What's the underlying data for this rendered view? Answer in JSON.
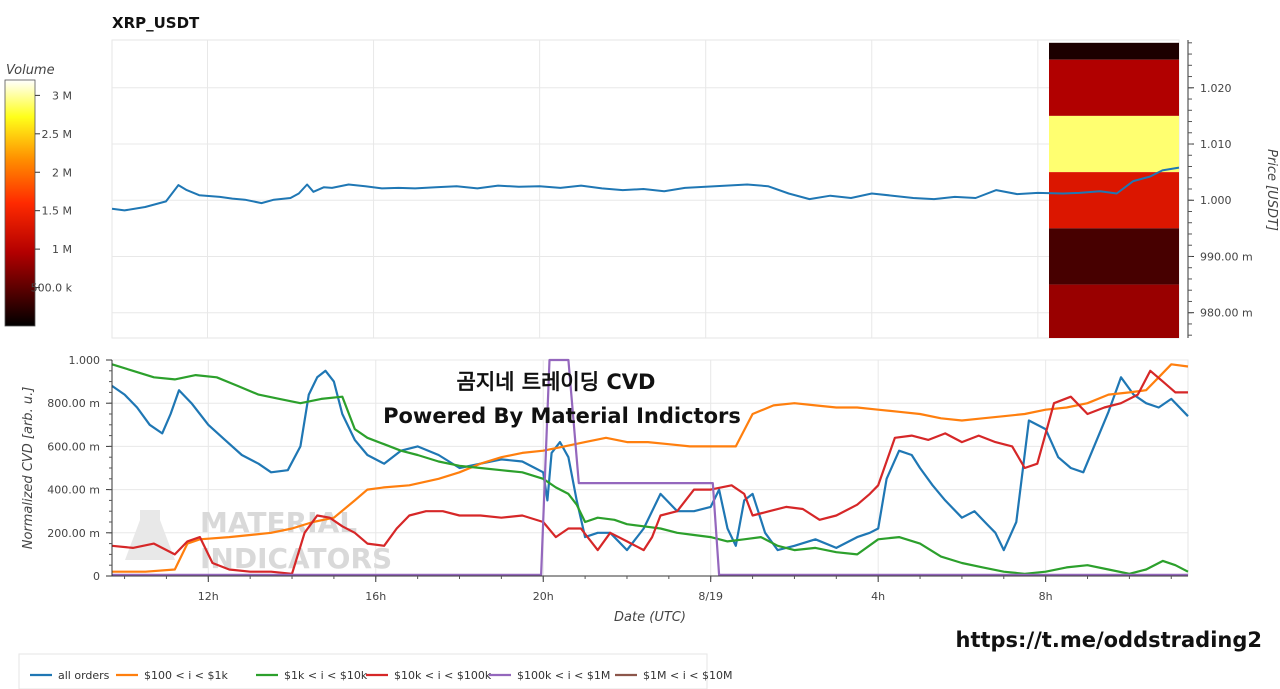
{
  "chart_data": [
    {
      "type": "line+heatmap",
      "title": "XRP_USDT",
      "ylabel": "Price [USDT]",
      "ylim": [
        0.9755,
        1.0285
      ],
      "yticks": [
        0.98,
        0.99,
        1.0,
        1.01,
        1.02
      ],
      "ytick_labels": [
        "980.00 m",
        "990.00 m",
        "1.000",
        "1.010",
        "1.020"
      ],
      "colorbar": {
        "title": "Volume",
        "range": [
          0,
          3200000
        ],
        "ticks": [
          500000,
          1000000,
          1500000,
          2000000,
          2500000,
          3000000
        ],
        "tick_labels": [
          "500.0 k",
          "1 M",
          "1.5 M",
          "2 M",
          "2.5 M",
          "3 M"
        ]
      },
      "heatmap_bins": [
        {
          "price_low": 1.025,
          "price_high": 1.028,
          "volume": 150000
        },
        {
          "price_low": 1.015,
          "price_high": 1.025,
          "volume": 950000
        },
        {
          "price_low": 1.005,
          "price_high": 1.015,
          "volume": 2900000
        },
        {
          "price_low": 0.995,
          "price_high": 1.005,
          "volume": 1300000
        },
        {
          "price_low": 0.985,
          "price_high": 0.995,
          "volume": 380000
        },
        {
          "price_low": 0.9755,
          "price_high": 0.985,
          "volume": 820000
        }
      ],
      "series": [
        {
          "color": "#1f77b4",
          "x": [
            9.7,
            10.0,
            10.5,
            11.0,
            11.3,
            11.5,
            11.8,
            12.3,
            12.6,
            12.9,
            13.3,
            13.6,
            14.0,
            14.2,
            14.4,
            14.55,
            14.8,
            15.0,
            15.4,
            15.8,
            16.2,
            16.6,
            17.0,
            17.5,
            18.0,
            18.5,
            19.0,
            19.5,
            20.0,
            20.5,
            21.0,
            21.5,
            22.0,
            22.5,
            23.0,
            23.5,
            24.0,
            24.5,
            25.0,
            25.5,
            26.0,
            26.5,
            27.0,
            27.5,
            28.0,
            28.5,
            29.0,
            29.5,
            30.0,
            30.5,
            31.0,
            31.5,
            32.0,
            32.6,
            33.0,
            33.5,
            33.9,
            34.3,
            34.7,
            35.0,
            35.4
          ],
          "y": [
            0.9985,
            0.9982,
            0.9988,
            0.9998,
            1.0027,
            1.0018,
            1.0009,
            1.0006,
            1.0003,
            1.0001,
            0.9995,
            1.0001,
            1.0004,
            1.0012,
            1.0028,
            1.0015,
            1.0023,
            1.0022,
            1.0028,
            1.0025,
            1.0021,
            1.0022,
            1.0021,
            1.0023,
            1.0025,
            1.0021,
            1.0026,
            1.0024,
            1.0025,
            1.0022,
            1.0026,
            1.0021,
            1.0018,
            1.002,
            1.0016,
            1.0022,
            1.0024,
            1.0026,
            1.0028,
            1.0025,
            1.0012,
            1.0002,
            1.0008,
            1.0004,
            1.0012,
            1.0008,
            1.0004,
            1.0002,
            1.0006,
            1.0004,
            1.0018,
            1.0011,
            1.0013,
            1.0012,
            1.0013,
            1.0016,
            1.0012,
            1.0034,
            1.0042,
            1.0053,
            1.0058
          ]
        }
      ]
    },
    {
      "type": "line",
      "title": "곰지네 트레이딩 CVD\nPowered By Material Indictors",
      "xlabel": "Date (UTC)",
      "ylabel": "Normalized CVD [arb. u.]",
      "xlim": [
        9.7,
        35.4
      ],
      "xticks": [
        12,
        16,
        20,
        24,
        28,
        32
      ],
      "xtick_labels": [
        "12h",
        "16h",
        "20h",
        "8/19",
        "4h",
        "8h"
      ],
      "ylim": [
        0,
        1
      ],
      "yticks": [
        0,
        0.2,
        0.4,
        0.6,
        0.8,
        1.0
      ],
      "ytick_labels": [
        "0",
        "200.00 m",
        "400.00 m",
        "600.00 m",
        "800.00 m",
        "1.000"
      ],
      "series": [
        {
          "name": "all orders",
          "color": "#1f77b4",
          "x": [
            9.7,
            10.0,
            10.3,
            10.6,
            10.9,
            11.1,
            11.3,
            11.6,
            12.0,
            12.4,
            12.8,
            13.2,
            13.5,
            13.9,
            14.2,
            14.4,
            14.6,
            14.8,
            15.0,
            15.2,
            15.5,
            15.8,
            16.2,
            16.6,
            17.0,
            17.5,
            18.0,
            18.5,
            19.0,
            19.5,
            19.8,
            20.0,
            20.1,
            20.2,
            20.4,
            20.6,
            20.8,
            21.0,
            21.3,
            21.6,
            22.0,
            22.4,
            22.8,
            23.2,
            23.6,
            24.0,
            24.2,
            24.4,
            24.6,
            24.8,
            25.0,
            25.3,
            25.6,
            26.0,
            26.5,
            27.0,
            27.5,
            27.8,
            28.0,
            28.2,
            28.5,
            28.8,
            29.0,
            29.3,
            29.6,
            30.0,
            30.3,
            30.6,
            30.8,
            31.0,
            31.3,
            31.6,
            32.0,
            32.3,
            32.6,
            32.9,
            33.2,
            33.5,
            33.8,
            34.1,
            34.4,
            34.7,
            35.0,
            35.4
          ],
          "y": [
            0.88,
            0.84,
            0.78,
            0.7,
            0.66,
            0.75,
            0.86,
            0.8,
            0.7,
            0.63,
            0.56,
            0.52,
            0.48,
            0.49,
            0.6,
            0.84,
            0.92,
            0.95,
            0.9,
            0.75,
            0.63,
            0.56,
            0.52,
            0.58,
            0.6,
            0.56,
            0.5,
            0.52,
            0.54,
            0.53,
            0.5,
            0.48,
            0.35,
            0.57,
            0.62,
            0.55,
            0.35,
            0.18,
            0.2,
            0.2,
            0.12,
            0.22,
            0.38,
            0.3,
            0.3,
            0.32,
            0.4,
            0.22,
            0.14,
            0.35,
            0.38,
            0.2,
            0.12,
            0.14,
            0.17,
            0.13,
            0.18,
            0.2,
            0.22,
            0.45,
            0.58,
            0.56,
            0.5,
            0.42,
            0.35,
            0.27,
            0.3,
            0.24,
            0.2,
            0.12,
            0.25,
            0.72,
            0.68,
            0.55,
            0.5,
            0.48,
            0.62,
            0.76,
            0.92,
            0.84,
            0.8,
            0.78,
            0.82,
            0.74
          ]
        },
        {
          "name": "$100 < i < $1k",
          "color": "#ff7f0e",
          "x": [
            9.7,
            10.5,
            11.2,
            11.5,
            11.8,
            12.5,
            13.0,
            13.5,
            14.0,
            14.5,
            15.0,
            15.5,
            15.8,
            16.2,
            16.8,
            17.5,
            18.0,
            18.5,
            19.0,
            19.5,
            20.0,
            20.5,
            21.0,
            21.5,
            22.0,
            22.5,
            23.0,
            23.5,
            24.0,
            24.4,
            24.6,
            25.0,
            25.5,
            26.0,
            26.5,
            27.0,
            27.5,
            28.0,
            28.5,
            29.0,
            29.5,
            30.0,
            30.5,
            31.0,
            31.5,
            32.0,
            32.5,
            33.0,
            33.5,
            34.0,
            34.4,
            34.7,
            35.0,
            35.4
          ],
          "y": [
            0.02,
            0.02,
            0.03,
            0.15,
            0.17,
            0.18,
            0.19,
            0.2,
            0.22,
            0.25,
            0.27,
            0.35,
            0.4,
            0.41,
            0.42,
            0.45,
            0.48,
            0.52,
            0.55,
            0.57,
            0.58,
            0.6,
            0.62,
            0.64,
            0.62,
            0.62,
            0.61,
            0.6,
            0.6,
            0.6,
            0.6,
            0.75,
            0.79,
            0.8,
            0.79,
            0.78,
            0.78,
            0.77,
            0.76,
            0.75,
            0.73,
            0.72,
            0.73,
            0.74,
            0.75,
            0.77,
            0.78,
            0.8,
            0.84,
            0.85,
            0.86,
            0.92,
            0.98,
            0.97
          ]
        },
        {
          "name": "$1k < i < $10k",
          "color": "#2ca02c",
          "x": [
            9.7,
            10.2,
            10.7,
            11.2,
            11.7,
            12.2,
            12.7,
            13.2,
            13.7,
            14.2,
            14.7,
            15.2,
            15.5,
            15.8,
            16.2,
            16.6,
            17.0,
            17.5,
            18.0,
            18.5,
            19.0,
            19.5,
            20.0,
            20.3,
            20.6,
            20.8,
            21.0,
            21.3,
            21.7,
            22.0,
            22.4,
            22.8,
            23.2,
            23.6,
            24.0,
            24.4,
            24.8,
            25.2,
            25.6,
            26.0,
            26.5,
            27.0,
            27.5,
            28.0,
            28.5,
            29.0,
            29.5,
            30.0,
            30.5,
            31.0,
            31.5,
            32.0,
            32.5,
            33.0,
            33.5,
            34.0,
            34.4,
            34.8,
            35.1,
            35.4
          ],
          "y": [
            0.98,
            0.95,
            0.92,
            0.91,
            0.93,
            0.92,
            0.88,
            0.84,
            0.82,
            0.8,
            0.82,
            0.83,
            0.68,
            0.64,
            0.61,
            0.58,
            0.56,
            0.53,
            0.51,
            0.5,
            0.49,
            0.48,
            0.45,
            0.41,
            0.38,
            0.33,
            0.25,
            0.27,
            0.26,
            0.24,
            0.23,
            0.22,
            0.2,
            0.19,
            0.18,
            0.16,
            0.17,
            0.18,
            0.14,
            0.12,
            0.13,
            0.11,
            0.1,
            0.17,
            0.18,
            0.15,
            0.09,
            0.06,
            0.04,
            0.02,
            0.01,
            0.02,
            0.04,
            0.05,
            0.03,
            0.01,
            0.03,
            0.07,
            0.05,
            0.02
          ]
        },
        {
          "name": "$10k < i < $100k",
          "color": "#d62728",
          "x": [
            9.7,
            10.2,
            10.7,
            11.2,
            11.5,
            11.8,
            12.1,
            12.5,
            13.0,
            13.5,
            14.0,
            14.3,
            14.6,
            14.9,
            15.2,
            15.5,
            15.8,
            16.2,
            16.5,
            16.8,
            17.2,
            17.6,
            18.0,
            18.5,
            19.0,
            19.5,
            20.0,
            20.3,
            20.6,
            20.9,
            21.3,
            21.6,
            22.0,
            22.4,
            22.6,
            22.8,
            23.2,
            23.6,
            24.0,
            24.5,
            24.8,
            25.0,
            25.4,
            25.8,
            26.2,
            26.6,
            27.0,
            27.5,
            27.8,
            28.0,
            28.4,
            28.8,
            29.2,
            29.6,
            30.0,
            30.4,
            30.8,
            31.2,
            31.5,
            31.8,
            32.2,
            32.6,
            33.0,
            33.4,
            33.8,
            34.2,
            34.5,
            34.8,
            35.1,
            35.4
          ],
          "y": [
            0.14,
            0.13,
            0.15,
            0.1,
            0.16,
            0.18,
            0.06,
            0.03,
            0.02,
            0.02,
            0.01,
            0.2,
            0.28,
            0.27,
            0.23,
            0.2,
            0.15,
            0.14,
            0.22,
            0.28,
            0.3,
            0.3,
            0.28,
            0.28,
            0.27,
            0.28,
            0.25,
            0.18,
            0.22,
            0.22,
            0.12,
            0.2,
            0.16,
            0.12,
            0.18,
            0.28,
            0.3,
            0.4,
            0.4,
            0.42,
            0.38,
            0.28,
            0.3,
            0.32,
            0.31,
            0.26,
            0.28,
            0.33,
            0.38,
            0.42,
            0.64,
            0.65,
            0.63,
            0.66,
            0.62,
            0.65,
            0.62,
            0.6,
            0.5,
            0.52,
            0.8,
            0.83,
            0.75,
            0.78,
            0.8,
            0.84,
            0.95,
            0.9,
            0.85,
            0.85
          ]
        },
        {
          "name": "$100k < i < $1M",
          "color": "#9467bd",
          "x": [
            9.7,
            19.95,
            20.15,
            20.6,
            20.85,
            21.0,
            24.0,
            24.05,
            24.2,
            35.4
          ],
          "y": [
            0.005,
            0.005,
            1.0,
            1.0,
            0.43,
            0.43,
            0.43,
            0.43,
            0.005,
            0.005
          ]
        },
        {
          "name": "$1M < i < $10M",
          "color": "#8c564b",
          "x": [],
          "y": []
        }
      ]
    }
  ],
  "watermark": {
    "line1": "MATERIAL",
    "line2": "INDICATORS"
  },
  "link": "https://t.me/oddstrading2"
}
